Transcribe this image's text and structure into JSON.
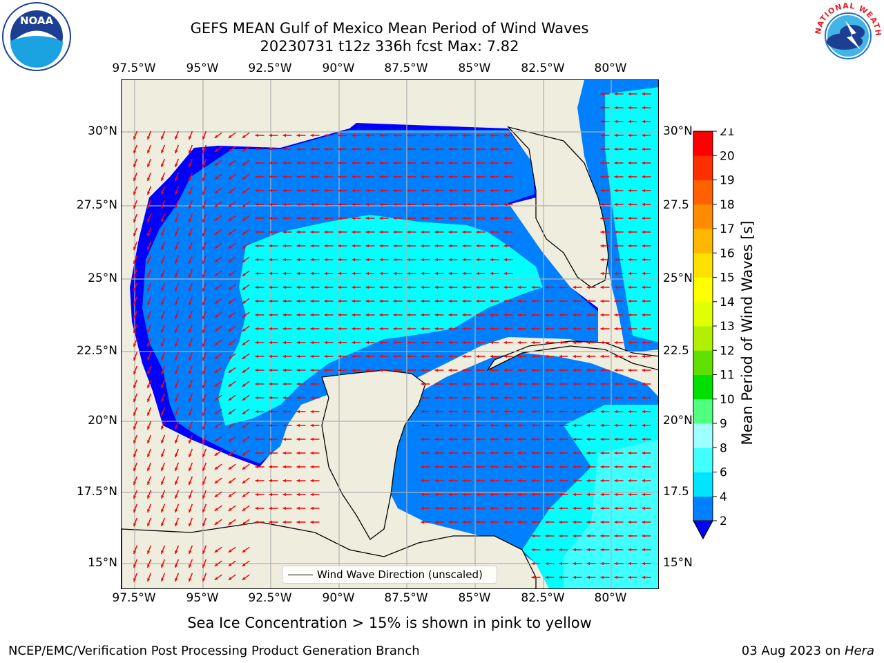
{
  "title_line1": "GEFS MEAN Gulf of Mexico Mean Period of Wind Waves",
  "title_line2": "20230731 t12z 336h fcst   Max: 7.82",
  "x_ticks": [
    "97.5°W",
    "95°W",
    "92.5°W",
    "90°W",
    "87.5°W",
    "85°W",
    "82.5°W",
    "80°W"
  ],
  "y_ticks": [
    "30°N",
    "27.5°N",
    "25°N",
    "22.5°N",
    "20°N",
    "17.5°N",
    "15°N"
  ],
  "y_ticks_right": [
    "30°N",
    "27.5",
    "25°N",
    "22.5",
    "20°N",
    "17.5",
    "15°N"
  ],
  "legend_label": "Wind Wave Direction (unscaled)",
  "ice_note": "Sea Ice Concentration > 15% is shown in pink to yellow",
  "footer_left": "NCEP/EMC/Verification Post Processing Product Generation Branch",
  "footer_date": "03 Aug 2023 on ",
  "footer_host": "Hera",
  "colorbar": {
    "label": "Mean Period of Wind Waves [s]",
    "ticks": [
      "2",
      "4",
      "6",
      "8",
      "9",
      "10",
      "11",
      "12",
      "13",
      "14",
      "15",
      "16",
      "17",
      "18",
      "19",
      "20",
      "21"
    ],
    "colors": [
      "#0080ff",
      "#00e5ff",
      "#40ffff",
      "#a0ffff",
      "#50ff80",
      "#00e000",
      "#60e000",
      "#b0f000",
      "#e0ff00",
      "#ffff00",
      "#ffe000",
      "#ffb800",
      "#ff8c00",
      "#ff6000",
      "#ff3000",
      "#ff0000"
    ],
    "under_color": "#0000ff"
  },
  "noaa_logo_text": "NOAA",
  "nws_logo_text": "NATIONAL WEATHER SERVICE"
}
